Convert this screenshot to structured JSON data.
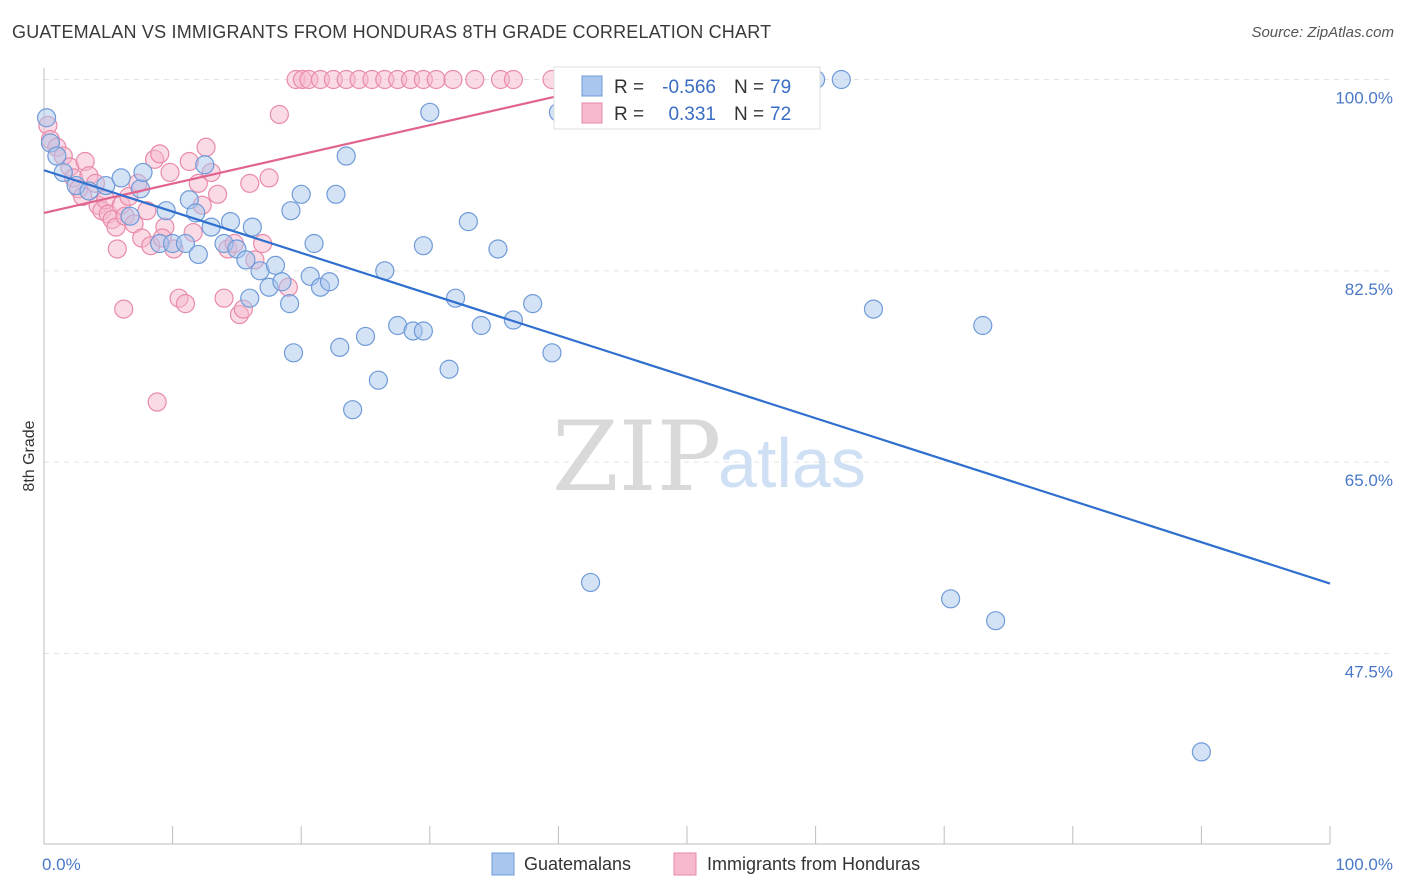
{
  "title": "GUATEMALAN VS IMMIGRANTS FROM HONDURAS 8TH GRADE CORRELATION CHART",
  "source": "Source: ZipAtlas.com",
  "watermark": {
    "zip": "ZIP",
    "atlas": "atlas"
  },
  "colors": {
    "blue_fill": "#a9c6ee",
    "blue_stroke": "#6f9bd8",
    "blue_line": "#2f6fcd",
    "pink_fill": "#f6b8cc",
    "pink_stroke": "#e98aa9",
    "pink_line": "#e0648d",
    "grid": "#e3e3e3",
    "axis_text": "#4a78c8"
  },
  "legend": {
    "r_label": "R =",
    "n_label": "N =",
    "series1": {
      "r": "-0.566",
      "n": "79"
    },
    "series2": {
      "r": "0.331",
      "n": "72"
    }
  },
  "chart_data": {
    "type": "scatter",
    "title": "GUATEMALAN VS IMMIGRANTS FROM HONDURAS 8TH GRADE CORRELATION CHART",
    "xlabel": "",
    "ylabel": "8th Grade",
    "xlim": [
      0,
      100
    ],
    "ylim": [
      31,
      102
    ],
    "x_tick_labels": [
      "0.0%",
      "100.0%"
    ],
    "y_ticks": [
      47.5,
      65.0,
      82.5,
      100.0
    ],
    "y_tick_labels": [
      "47.5%",
      "65.0%",
      "82.5%",
      "100.0%"
    ],
    "series": [
      {
        "name": "Guatemalans",
        "color": "#a9c6ee",
        "trend": {
          "x": [
            0,
            100
          ],
          "y": [
            91.7,
            53.9
          ]
        },
        "points": [
          [
            0.2,
            96.5
          ],
          [
            0.5,
            94.2
          ],
          [
            1,
            93
          ],
          [
            1.5,
            91.5
          ],
          [
            2.5,
            90.3
          ],
          [
            3.5,
            89.8
          ],
          [
            4.8,
            90.3
          ],
          [
            6,
            91
          ],
          [
            6.7,
            87.5
          ],
          [
            7.5,
            90
          ],
          [
            7.7,
            91.5
          ],
          [
            9,
            85
          ],
          [
            10,
            85
          ],
          [
            11,
            85
          ],
          [
            9.5,
            88
          ],
          [
            11.3,
            89
          ],
          [
            11.8,
            87.8
          ],
          [
            12,
            84
          ],
          [
            13,
            86.5
          ],
          [
            12.5,
            92.2
          ],
          [
            14,
            85
          ],
          [
            14.5,
            87
          ],
          [
            15,
            84.5
          ],
          [
            15.7,
            83.5
          ],
          [
            16,
            80
          ],
          [
            16.2,
            86.5
          ],
          [
            16.8,
            82.5
          ],
          [
            17.5,
            81
          ],
          [
            18,
            83
          ],
          [
            18.5,
            81.5
          ],
          [
            19.1,
            79.5
          ],
          [
            19.2,
            88
          ],
          [
            19.4,
            75
          ],
          [
            20,
            89.5
          ],
          [
            20.7,
            82
          ],
          [
            21,
            85
          ],
          [
            21.5,
            81
          ],
          [
            22.2,
            81.5
          ],
          [
            22.7,
            89.5
          ],
          [
            23,
            75.5
          ],
          [
            23.5,
            93
          ],
          [
            24,
            69.8
          ],
          [
            25,
            76.5
          ],
          [
            26,
            72.5
          ],
          [
            26.5,
            82.5
          ],
          [
            27.5,
            77.5
          ],
          [
            28.7,
            77
          ],
          [
            29.5,
            84.8
          ],
          [
            29.5,
            77
          ],
          [
            30,
            97
          ],
          [
            31.5,
            73.5
          ],
          [
            32,
            80
          ],
          [
            33,
            87
          ],
          [
            34,
            77.5
          ],
          [
            35.3,
            84.5
          ],
          [
            36.5,
            78
          ],
          [
            38,
            79.5
          ],
          [
            39.5,
            75
          ],
          [
            40,
            97
          ],
          [
            42.5,
            54
          ],
          [
            44,
            100
          ],
          [
            45,
            100
          ],
          [
            45.3,
            100
          ],
          [
            46,
            100
          ],
          [
            47.5,
            100
          ],
          [
            48,
            100
          ],
          [
            49.5,
            100
          ],
          [
            52,
            100
          ],
          [
            55,
            100
          ],
          [
            56,
            100
          ],
          [
            57,
            100
          ],
          [
            58,
            100
          ],
          [
            60,
            100
          ],
          [
            62,
            100
          ],
          [
            64.5,
            79
          ],
          [
            70.5,
            52.5
          ],
          [
            73,
            77.5
          ],
          [
            74,
            50.5
          ],
          [
            90,
            38.5
          ]
        ]
      },
      {
        "name": "Immigrants from Honduras",
        "color": "#f6b8cc",
        "trend": {
          "x": [
            0,
            40
          ],
          "y": [
            87.8,
            98.5
          ]
        },
        "points": [
          [
            0.3,
            95.8
          ],
          [
            0.5,
            94.5
          ],
          [
            1,
            93.8
          ],
          [
            1.5,
            93
          ],
          [
            2,
            92
          ],
          [
            2.3,
            91
          ],
          [
            2.7,
            90
          ],
          [
            3,
            89.3
          ],
          [
            3.2,
            92.5
          ],
          [
            3.5,
            91.2
          ],
          [
            4,
            90.5
          ],
          [
            4.2,
            88.5
          ],
          [
            4.5,
            88
          ],
          [
            4.8,
            89
          ],
          [
            5,
            87.7
          ],
          [
            5.3,
            87.2
          ],
          [
            5.6,
            86.5
          ],
          [
            6,
            88.5
          ],
          [
            6.3,
            87.5
          ],
          [
            6.6,
            89.3
          ],
          [
            7,
            86.8
          ],
          [
            7.3,
            90.5
          ],
          [
            7.6,
            85.5
          ],
          [
            8,
            88
          ],
          [
            8.3,
            84.8
          ],
          [
            8.6,
            92.7
          ],
          [
            9,
            93.2
          ],
          [
            9.4,
            86.5
          ],
          [
            9.8,
            91.5
          ],
          [
            10.1,
            84.5
          ],
          [
            10.5,
            80
          ],
          [
            11,
            79.5
          ],
          [
            11.3,
            92.5
          ],
          [
            11.6,
            86
          ],
          [
            12,
            90.5
          ],
          [
            12.3,
            88.5
          ],
          [
            12.6,
            93.8
          ],
          [
            13,
            91.5
          ],
          [
            13.5,
            89.5
          ],
          [
            14,
            80
          ],
          [
            14.3,
            84.5
          ],
          [
            14.8,
            85
          ],
          [
            15.2,
            78.5
          ],
          [
            15.5,
            79
          ],
          [
            16,
            90.5
          ],
          [
            16.4,
            83.5
          ],
          [
            17,
            85
          ],
          [
            17.5,
            91
          ],
          [
            18.3,
            96.8
          ],
          [
            19,
            81
          ],
          [
            19.6,
            100
          ],
          [
            20.1,
            100
          ],
          [
            20.6,
            100
          ],
          [
            21.5,
            100
          ],
          [
            22.5,
            100
          ],
          [
            23.5,
            100
          ],
          [
            24.5,
            100
          ],
          [
            25.5,
            100
          ],
          [
            26.5,
            100
          ],
          [
            27.5,
            100
          ],
          [
            28.5,
            100
          ],
          [
            29.5,
            100
          ],
          [
            30.5,
            100
          ],
          [
            31.8,
            100
          ],
          [
            33.5,
            100
          ],
          [
            35.5,
            100
          ],
          [
            36.5,
            100
          ],
          [
            39.5,
            100
          ],
          [
            8.8,
            70.5
          ],
          [
            6.2,
            79
          ],
          [
            9.2,
            85.5
          ],
          [
            5.7,
            84.5
          ]
        ]
      }
    ]
  },
  "bottom_legend": {
    "series1": "Guatemalans",
    "series2": "Immigrants from Honduras"
  }
}
